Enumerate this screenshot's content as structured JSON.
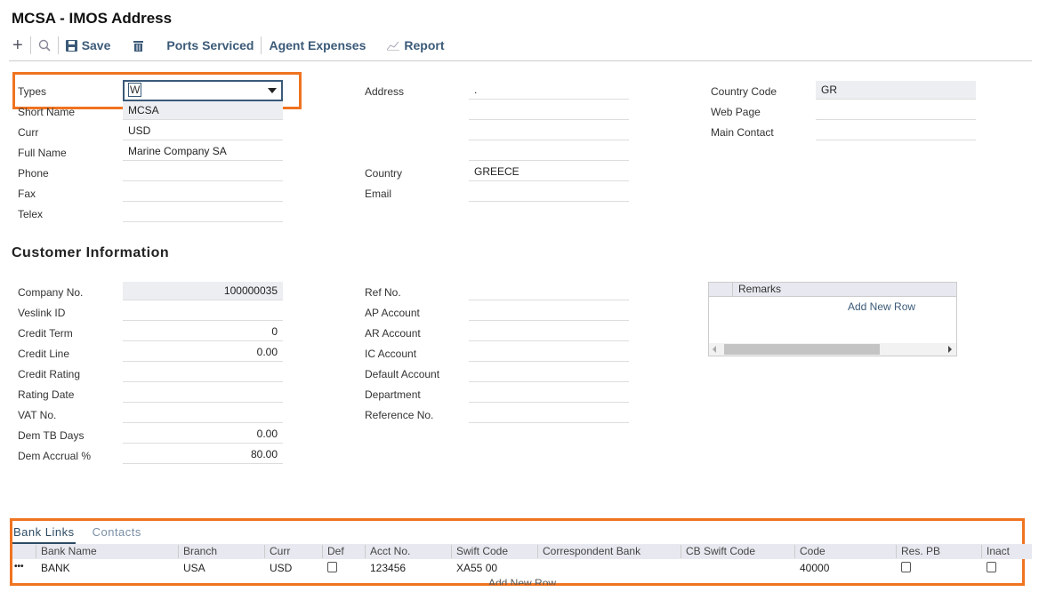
{
  "title": "MCSA - IMOS Address",
  "toolbar": {
    "save": "Save",
    "ports": "Ports Serviced",
    "agent": "Agent Expenses",
    "report": "Report"
  },
  "form": {
    "types": {
      "label": "Types",
      "value": "W"
    },
    "short_name": {
      "label": "Short Name",
      "value": "MCSA"
    },
    "curr": {
      "label": "Curr",
      "value": "USD"
    },
    "full_name": {
      "label": "Full Name",
      "value": "Marine Company SA"
    },
    "phone": {
      "label": "Phone",
      "value": ""
    },
    "fax": {
      "label": "Fax",
      "value": ""
    },
    "telex": {
      "label": "Telex",
      "value": ""
    },
    "address": {
      "label": "Address",
      "lines": [
        ".",
        "",
        "",
        ""
      ]
    },
    "country": {
      "label": "Country",
      "value": "GREECE"
    },
    "email": {
      "label": "Email",
      "value": ""
    },
    "country_code": {
      "label": "Country Code",
      "value": "GR"
    },
    "web_page": {
      "label": "Web Page",
      "value": ""
    },
    "main_contact": {
      "label": "Main Contact",
      "value": ""
    }
  },
  "customer": {
    "heading": "Customer Information",
    "left": [
      {
        "label": "Company No.",
        "value": "100000035"
      },
      {
        "label": "Veslink ID",
        "value": ""
      },
      {
        "label": "Credit Term",
        "value": "0"
      },
      {
        "label": "Credit Line",
        "value": "0.00"
      },
      {
        "label": "Credit Rating",
        "value": ""
      },
      {
        "label": "Rating Date",
        "value": ""
      },
      {
        "label": "VAT No.",
        "value": ""
      },
      {
        "label": "Dem TB Days",
        "value": "0.00"
      },
      {
        "label": "Dem Accrual %",
        "value": "80.00"
      }
    ],
    "middle": [
      {
        "label": "Ref No.",
        "value": ""
      },
      {
        "label": "AP Account",
        "value": ""
      },
      {
        "label": "AR Account",
        "value": ""
      },
      {
        "label": "IC Account",
        "value": ""
      },
      {
        "label": "Default Account",
        "value": ""
      },
      {
        "label": "Department",
        "value": ""
      },
      {
        "label": "Reference No.",
        "value": ""
      }
    ],
    "remarks": {
      "header": "Remarks",
      "add_row": "Add New Row"
    }
  },
  "bank": {
    "tabs": [
      "Bank Links",
      "Contacts"
    ],
    "columns": [
      "Bank Name",
      "Branch",
      "Curr",
      "Def",
      "Acct No.",
      "Swift Code",
      "Correspondent Bank",
      "CB Swift Code",
      "Code",
      "Res. PB",
      "Inact"
    ],
    "rows": [
      {
        "bank_name": "BANK",
        "branch": "USA",
        "curr": "USD",
        "def": false,
        "acct": "123456",
        "swift": "XA55 00",
        "corr": "",
        "cb_swift": "",
        "code": "40000",
        "res_pb": false,
        "inact": false
      }
    ],
    "add_row": "Add New Row",
    "row_menu": "•••"
  },
  "colors": {
    "highlight": "#f07320",
    "accent": "#2d4b63"
  }
}
